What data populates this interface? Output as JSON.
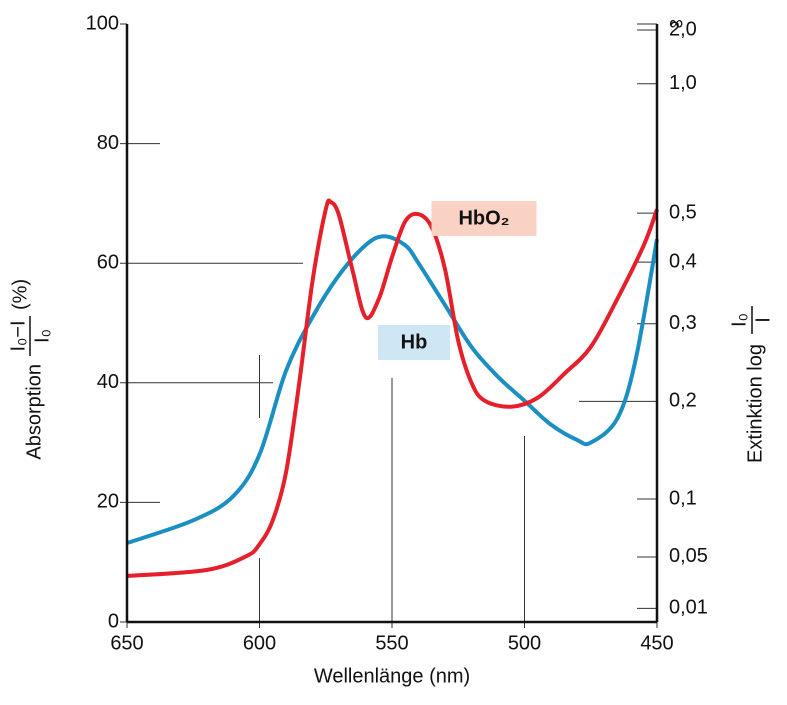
{
  "chart_data": {
    "type": "line",
    "xlabel": "Wellenlänge (nm)",
    "ylabel": {
      "text": "Absorption",
      "numerator": "I₀−I",
      "denominator": "I₀",
      "unit": "(%)"
    },
    "y2label": {
      "text": "Extinktion log",
      "numerator": "I₀",
      "denominator": "I"
    },
    "xlim": [
      650,
      450
    ],
    "xticks": [
      650,
      600,
      550,
      500,
      450
    ],
    "ylim": [
      0,
      100
    ],
    "yticks": [
      0,
      20,
      40,
      60,
      80,
      100
    ],
    "y2scale": "extinction",
    "y2ticks": [
      {
        "value": 0.01,
        "label": "0,01"
      },
      {
        "value": 0.05,
        "label": "0,05"
      },
      {
        "value": 0.1,
        "label": "0,1"
      },
      {
        "value": 0.2,
        "label": "0,2"
      },
      {
        "value": 0.3,
        "label": "0,3"
      },
      {
        "value": 0.4,
        "label": "0,4"
      },
      {
        "value": 0.5,
        "label": "0,5"
      },
      {
        "value": 1.0,
        "label": "1,0"
      },
      {
        "value": 2.0,
        "label": "2,0"
      },
      {
        "value": null,
        "label": "∞"
      }
    ],
    "series": [
      {
        "name": "Hb",
        "color": "#1b8fc1",
        "label_bg": "#cfe6f5",
        "x": [
          650,
          625,
          610,
          600,
          590,
          580,
          570,
          560,
          553,
          545,
          540,
          530,
          520,
          510,
          500,
          490,
          480,
          475,
          465,
          458,
          450
        ],
        "values": [
          13.2,
          17,
          21,
          28,
          42,
          51,
          58,
          63,
          64.5,
          63,
          60,
          53,
          46,
          41,
          37,
          33,
          30.4,
          30,
          34,
          44,
          64
        ]
      },
      {
        "name": "HbO₂",
        "color": "#e5202b",
        "label_bg": "#f9d2c4",
        "x": [
          650,
          620,
          605,
          600,
          595,
          590,
          585,
          580,
          575,
          573,
          570,
          565,
          560,
          555,
          550,
          545,
          540,
          535,
          530,
          525,
          520,
          515,
          505,
          495,
          485,
          475,
          465,
          455,
          450
        ],
        "values": [
          7.7,
          8.7,
          11,
          13,
          17,
          25,
          40,
          57,
          69,
          70.2,
          68,
          59,
          51,
          54,
          61,
          67,
          68.2,
          66,
          59,
          47,
          40,
          37,
          36,
          37.5,
          41.5,
          46,
          54,
          63,
          69
        ]
      }
    ]
  }
}
